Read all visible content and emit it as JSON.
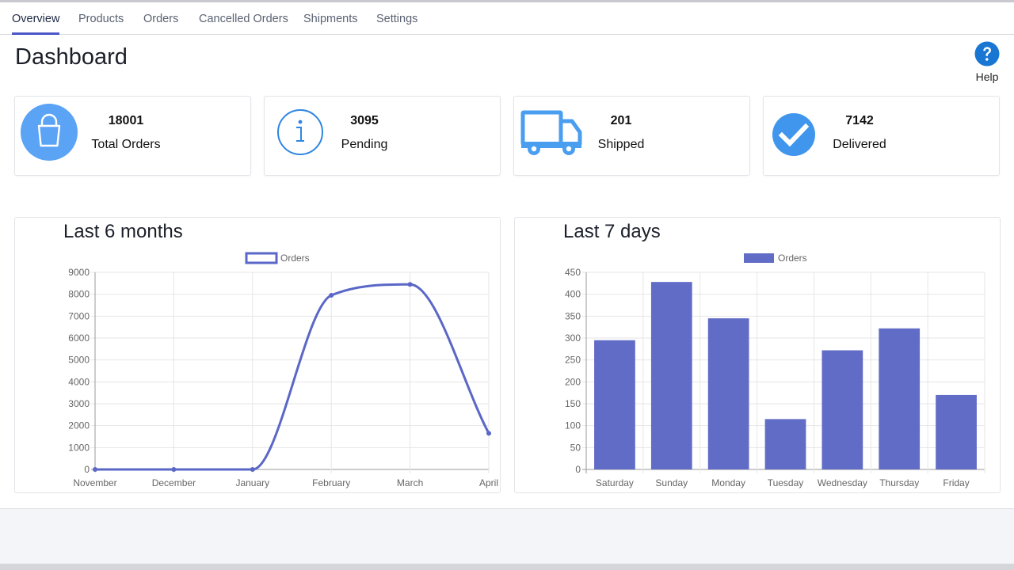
{
  "tabs": [
    {
      "label": "Overview",
      "active": true
    },
    {
      "label": "Products",
      "active": false
    },
    {
      "label": "Orders",
      "active": false
    },
    {
      "label": "Cancelled Orders",
      "active": false
    },
    {
      "label": "Shipments",
      "active": false
    },
    {
      "label": "Settings",
      "active": false
    }
  ],
  "page_title": "Dashboard",
  "help": {
    "label": "Help",
    "icon": "help-icon",
    "color": "#1976d2"
  },
  "stats": [
    {
      "value": "18001",
      "label": "Total Orders",
      "icon": "shopping-bag-icon",
      "color": "#5aa3f5"
    },
    {
      "value": "3095",
      "label": "Pending",
      "icon": "info-icon",
      "color": "#2f86e0"
    },
    {
      "value": "201",
      "label": "Shipped",
      "icon": "truck-icon",
      "color": "#4a9ef0"
    },
    {
      "value": "7142",
      "label": "Delivered",
      "icon": "check-circle-icon",
      "color": "#3f96ec"
    }
  ],
  "chart_data": [
    {
      "type": "line",
      "title": "Last 6 months",
      "legend": "Orders",
      "legend_position": "top",
      "categories": [
        "November",
        "December",
        "January",
        "February",
        "March",
        "April"
      ],
      "series": [
        {
          "name": "Orders",
          "values": [
            0,
            0,
            0,
            7950,
            8450,
            1650
          ]
        }
      ],
      "ylim": [
        0,
        9000
      ],
      "yticks": [
        0,
        1000,
        2000,
        3000,
        4000,
        5000,
        6000,
        7000,
        8000,
        9000
      ],
      "grid": true,
      "color": "#5a67c7"
    },
    {
      "type": "bar",
      "title": "Last 7 days",
      "legend": "Orders",
      "legend_position": "top",
      "categories": [
        "Saturday",
        "Sunday",
        "Monday",
        "Tuesday",
        "Wednesday",
        "Thursday",
        "Friday"
      ],
      "series": [
        {
          "name": "Orders",
          "values": [
            295,
            428,
            345,
            115,
            272,
            322,
            170
          ]
        }
      ],
      "ylim": [
        0,
        450
      ],
      "yticks": [
        0,
        50,
        100,
        150,
        200,
        250,
        300,
        350,
        400,
        450
      ],
      "grid": true,
      "color": "#616cc7"
    }
  ]
}
